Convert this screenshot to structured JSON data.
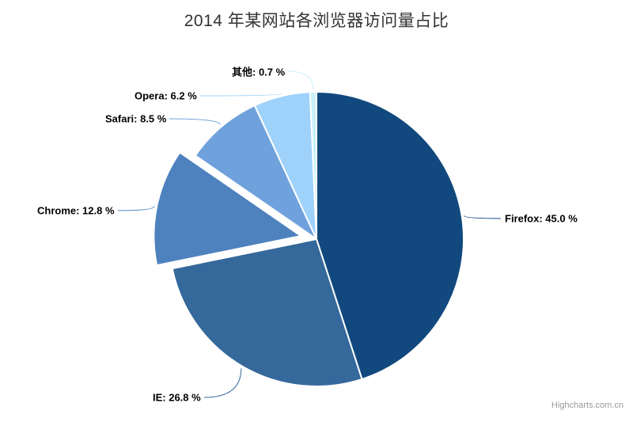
{
  "chart_data": {
    "type": "pie",
    "title": "2014 年某网站各浏览器访问量占比",
    "legend": "none",
    "value_suffix": " %",
    "start_angle_deg": 0,
    "direction": "clockwise",
    "title_color": "#333333",
    "label_color": "#000000",
    "slices": [
      {
        "id": "firefox",
        "name": "Firefox",
        "value": 45.0,
        "label": "Firefox: 45.0 %",
        "color": "#11497E",
        "sliced": false
      },
      {
        "id": "ie",
        "name": "IE",
        "value": 26.8,
        "label": "IE: 26.8 %",
        "color": "#35689B",
        "sliced": false
      },
      {
        "id": "chrome",
        "name": "Chrome",
        "value": 12.8,
        "label": "Chrome: 12.8 %",
        "color": "#4E82BE",
        "sliced": true
      },
      {
        "id": "safari",
        "name": "Safari",
        "value": 8.5,
        "label": "Safari: 8.5 %",
        "color": "#6FA1DC",
        "sliced": false
      },
      {
        "id": "opera",
        "name": "Opera",
        "value": 6.2,
        "label": "Opera: 6.2 %",
        "color": "#9ED2FA",
        "sliced": false
      },
      {
        "id": "other",
        "name": "其他",
        "value": 0.7,
        "label": "其他: 0.7 %",
        "color": "#C9F1FA",
        "sliced": false
      }
    ]
  },
  "credits": {
    "text": "Highcharts.com.cn",
    "color": "#999999"
  }
}
